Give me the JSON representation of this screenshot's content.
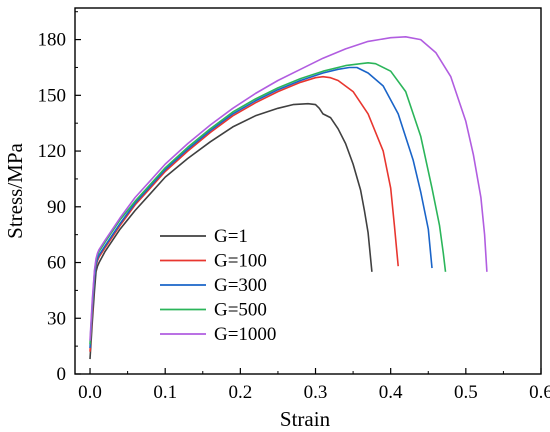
{
  "chart_data": {
    "type": "line",
    "title": "",
    "xlabel": "Strain",
    "ylabel": "Stress/MPa",
    "xlim": [
      -0.02,
      0.6
    ],
    "ylim": [
      0,
      197
    ],
    "xticks": [
      0.0,
      0.1,
      0.2,
      0.3,
      0.4,
      0.5,
      0.6
    ],
    "xtick_labels": [
      "0.0",
      "0.1",
      "0.2",
      "0.3",
      "0.4",
      "0.5",
      "0.6"
    ],
    "yticks": [
      0,
      30,
      60,
      90,
      120,
      150,
      180
    ],
    "ytick_labels": [
      "0",
      "30",
      "60",
      "90",
      "120",
      "150",
      "180"
    ],
    "grid": false,
    "legend_position": "center-left",
    "series": [
      {
        "name": "G=1",
        "color": "#404040",
        "x": [
          0.0,
          0.003,
          0.006,
          0.008,
          0.01,
          0.012,
          0.02,
          0.04,
          0.06,
          0.08,
          0.1,
          0.13,
          0.16,
          0.19,
          0.22,
          0.25,
          0.27,
          0.29,
          0.3,
          0.305,
          0.31,
          0.32,
          0.33,
          0.34,
          0.35,
          0.36,
          0.365,
          0.37,
          0.375
        ],
        "y": [
          8,
          28,
          45,
          55,
          58,
          60,
          66,
          78,
          88,
          97,
          106,
          116,
          125,
          133,
          139,
          143,
          145,
          145.5,
          145,
          143,
          140,
          138,
          132,
          124,
          113,
          99,
          88,
          76,
          55
        ]
      },
      {
        "name": "G=100",
        "color": "#e8362f",
        "x": [
          0.0,
          0.003,
          0.006,
          0.008,
          0.01,
          0.012,
          0.02,
          0.04,
          0.06,
          0.08,
          0.1,
          0.13,
          0.16,
          0.19,
          0.22,
          0.25,
          0.28,
          0.3,
          0.31,
          0.32,
          0.33,
          0.35,
          0.37,
          0.39,
          0.4,
          0.405,
          0.41
        ],
        "y": [
          12,
          32,
          52,
          58,
          61,
          63,
          68,
          80,
          91,
          100,
          109,
          120,
          130,
          139,
          146,
          152,
          157,
          159.5,
          160,
          159.5,
          158,
          152,
          140,
          120,
          100,
          80,
          58
        ]
      },
      {
        "name": "G=300",
        "color": "#1a64c8",
        "x": [
          0.0,
          0.003,
          0.006,
          0.008,
          0.01,
          0.012,
          0.02,
          0.04,
          0.06,
          0.08,
          0.1,
          0.13,
          0.16,
          0.19,
          0.22,
          0.25,
          0.28,
          0.31,
          0.33,
          0.345,
          0.355,
          0.37,
          0.39,
          0.41,
          0.43,
          0.44,
          0.45,
          0.455
        ],
        "y": [
          14,
          35,
          52,
          59,
          62,
          64,
          69,
          81,
          92,
          101,
          110,
          121,
          131,
          140,
          147,
          153,
          158,
          162,
          164,
          165,
          165,
          162,
          155,
          140,
          115,
          98,
          78,
          57
        ]
      },
      {
        "name": "G=500",
        "color": "#2bb55a",
        "x": [
          0.0,
          0.003,
          0.006,
          0.008,
          0.01,
          0.012,
          0.02,
          0.04,
          0.06,
          0.08,
          0.1,
          0.13,
          0.16,
          0.19,
          0.22,
          0.25,
          0.28,
          0.31,
          0.34,
          0.36,
          0.37,
          0.38,
          0.4,
          0.42,
          0.44,
          0.455,
          0.465,
          0.47,
          0.473
        ],
        "y": [
          16,
          38,
          55,
          61,
          64,
          66,
          71,
          83,
          93,
          102,
          111,
          122,
          132,
          141,
          148,
          154,
          159,
          163,
          166,
          167,
          167.5,
          167,
          163,
          152,
          128,
          100,
          80,
          65,
          55
        ]
      },
      {
        "name": "G=1000",
        "color": "#b15de0",
        "x": [
          0.0,
          0.003,
          0.006,
          0.008,
          0.01,
          0.012,
          0.02,
          0.04,
          0.06,
          0.08,
          0.1,
          0.13,
          0.16,
          0.19,
          0.22,
          0.25,
          0.28,
          0.31,
          0.34,
          0.37,
          0.4,
          0.42,
          0.44,
          0.46,
          0.48,
          0.5,
          0.51,
          0.52,
          0.525,
          0.528
        ],
        "y": [
          18,
          40,
          56,
          62,
          65,
          67,
          72,
          84,
          95,
          104,
          113,
          124,
          134,
          143,
          151,
          158,
          164,
          170,
          175,
          179,
          181,
          181.5,
          180,
          173,
          160,
          136,
          118,
          95,
          75,
          55
        ]
      }
    ]
  }
}
